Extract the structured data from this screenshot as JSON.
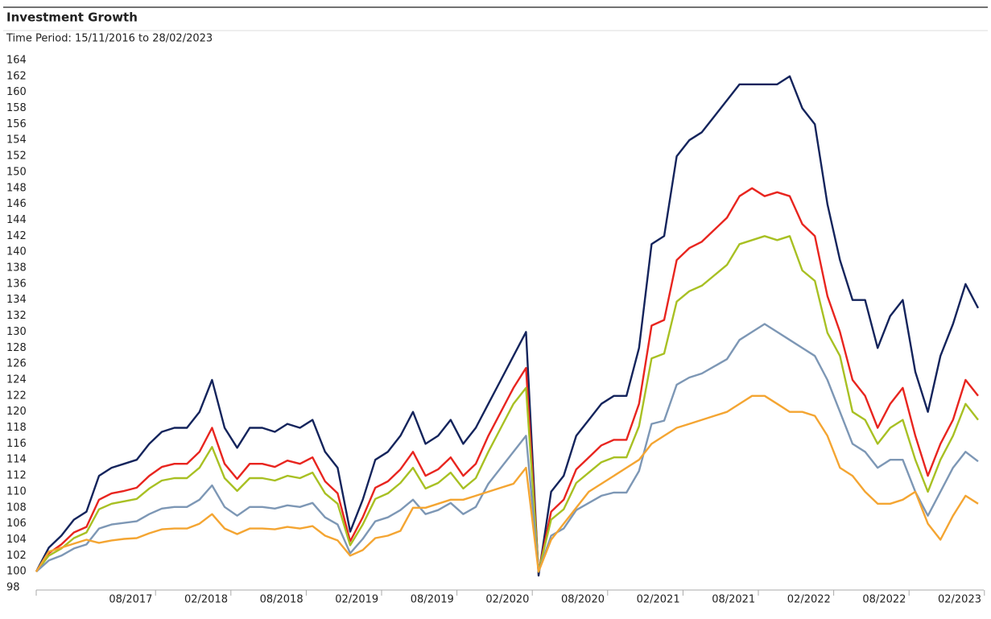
{
  "chart_data": {
    "type": "line",
    "title": "Investment Growth",
    "subtitle": "Time Period: 15/11/2016 to 28/02/2023",
    "categories": [
      null,
      null,
      null,
      null,
      null,
      null,
      null,
      null,
      null,
      "08/2017",
      null,
      null,
      null,
      null,
      null,
      "02/2018",
      null,
      null,
      null,
      null,
      null,
      "08/2018",
      null,
      null,
      null,
      null,
      null,
      "02/2019",
      null,
      null,
      null,
      null,
      null,
      "08/2019",
      null,
      null,
      null,
      null,
      null,
      "02/2020",
      null,
      null,
      null,
      null,
      null,
      "08/2020",
      null,
      null,
      null,
      null,
      null,
      "02/2021",
      null,
      null,
      null,
      null,
      null,
      "08/2021",
      null,
      null,
      null,
      null,
      null,
      "02/2022",
      null,
      null,
      null,
      null,
      null,
      "08/2022",
      null,
      null,
      null,
      null,
      null,
      "02/2023"
    ],
    "ylim": [
      98,
      164
    ],
    "yticks": [
      98,
      100,
      102,
      104,
      106,
      108,
      110,
      112,
      114,
      116,
      118,
      120,
      122,
      124,
      126,
      128,
      130,
      132,
      134,
      136,
      138,
      140,
      142,
      144,
      146,
      148,
      150,
      152,
      154,
      156,
      158,
      160,
      162,
      164
    ],
    "series": [
      {
        "color": "#14245c",
        "values": [
          100,
          103,
          104.5,
          106.5,
          107.5,
          112,
          113,
          113.5,
          114,
          116,
          117.5,
          118,
          118,
          120,
          124,
          118,
          115.5,
          118,
          118,
          117.5,
          118.5,
          118,
          119,
          115,
          113,
          105,
          109,
          114,
          115,
          117,
          120,
          116,
          117,
          119,
          116,
          118,
          121,
          124,
          127,
          130,
          99.5,
          110,
          112,
          117,
          119,
          121,
          122,
          122,
          128,
          141,
          142,
          152,
          154,
          155,
          157,
          159,
          161,
          161,
          161,
          161,
          162,
          158,
          156,
          146,
          139,
          134,
          134,
          128,
          132,
          134,
          125,
          120,
          127,
          131,
          136,
          133
        ]
      },
      {
        "color": "#e8251f",
        "values": [
          100,
          102.3,
          103.4,
          104.9,
          105.6,
          109,
          109.8,
          110.1,
          110.5,
          112,
          113.1,
          113.5,
          113.5,
          115,
          118,
          113.5,
          111.6,
          113.5,
          113.5,
          113.1,
          113.9,
          113.5,
          114.3,
          111.3,
          109.8,
          103.8,
          106.8,
          110.5,
          111.3,
          112.8,
          115,
          112,
          112.8,
          114.3,
          112,
          113.5,
          117,
          120,
          123,
          125.5,
          100,
          107.5,
          109,
          112.8,
          114.3,
          115.8,
          116.5,
          116.5,
          121,
          130.8,
          131.5,
          139,
          140.5,
          141.3,
          142.8,
          144.3,
          147,
          148,
          147,
          147.5,
          147,
          143.5,
          142,
          134.5,
          130,
          124,
          122,
          118,
          121,
          123,
          117,
          112,
          116,
          119,
          124,
          122
        ]
      },
      {
        "color": "#a8c023",
        "values": [
          100,
          102,
          102.9,
          104.2,
          104.9,
          107.8,
          108.5,
          108.8,
          109.1,
          110.4,
          111.4,
          111.7,
          111.7,
          113,
          115.6,
          111.7,
          110.1,
          111.7,
          111.7,
          111.4,
          112,
          111.7,
          112.4,
          109.8,
          108.5,
          103.3,
          105.9,
          109.1,
          109.8,
          111.1,
          113,
          110.4,
          111.1,
          112.4,
          110.4,
          111.7,
          115,
          118,
          121,
          123,
          100,
          106.5,
          107.8,
          111.1,
          112.4,
          113.7,
          114.3,
          114.3,
          118.2,
          126.7,
          127.3,
          133.8,
          135.1,
          135.8,
          137.1,
          138.4,
          141,
          141.5,
          142,
          141.5,
          142,
          137.7,
          136.4,
          129.9,
          127,
          120,
          119,
          116,
          118,
          119,
          114,
          110,
          114,
          117,
          121,
          119
        ]
      },
      {
        "color": "#7d97b5",
        "values": [
          100,
          101.4,
          102,
          102.9,
          103.4,
          105.4,
          105.9,
          106.1,
          106.3,
          107.2,
          107.9,
          108.1,
          108.1,
          109,
          110.8,
          108.1,
          107,
          108.1,
          108.1,
          107.9,
          108.3,
          108.1,
          108.6,
          106.8,
          105.9,
          102.3,
          104.1,
          106.3,
          106.8,
          107.7,
          109,
          107.2,
          107.7,
          108.6,
          107.2,
          108.1,
          111,
          113,
          115,
          117,
          100,
          104.5,
          105.4,
          107.7,
          108.6,
          109.5,
          109.9,
          109.9,
          112.6,
          118.5,
          118.9,
          123.4,
          124.3,
          124.8,
          125.7,
          126.6,
          129,
          130,
          131,
          130,
          129,
          128,
          127,
          124,
          120,
          116,
          115,
          113,
          114,
          114,
          110,
          107,
          110,
          113,
          115,
          113.8
        ]
      },
      {
        "color": "#f4a532",
        "values": [
          100,
          102.5,
          103,
          103.5,
          104,
          103.6,
          103.9,
          104.1,
          104.2,
          104.8,
          105.3,
          105.4,
          105.4,
          106,
          107.2,
          105.4,
          104.7,
          105.4,
          105.4,
          105.3,
          105.6,
          105.4,
          105.7,
          104.5,
          103.9,
          102,
          102.7,
          104.2,
          104.5,
          105.1,
          108,
          108,
          108.5,
          109,
          109,
          109.5,
          110,
          110.5,
          111,
          113,
          100,
          104,
          106,
          108,
          110,
          111,
          112,
          113,
          114,
          116,
          117,
          118,
          118.5,
          119,
          119.5,
          120,
          121,
          122,
          122,
          121,
          120,
          120,
          119.5,
          117,
          113,
          112,
          110,
          108.5,
          108.5,
          109,
          110,
          106,
          104,
          107,
          109.5,
          108.5
        ]
      }
    ]
  }
}
